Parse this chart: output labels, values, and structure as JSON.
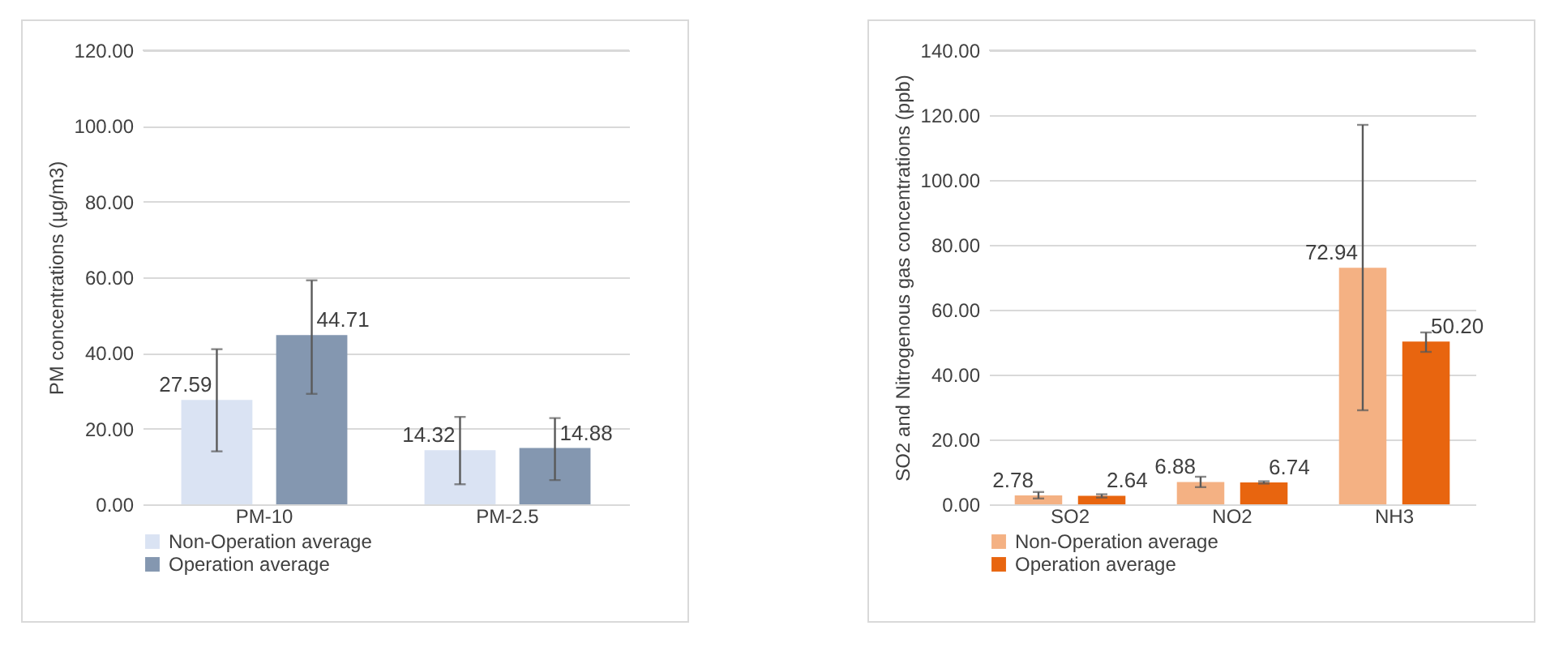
{
  "chart_data": [
    {
      "type": "bar",
      "ylabel": "PM concentrations (µg/m3)",
      "categories": [
        "PM-10",
        "PM-2.5"
      ],
      "series": [
        {
          "name": "Non-Operation average",
          "color": "#dae3f3",
          "values": [
            27.59,
            14.32
          ],
          "value_labels": [
            "27.59",
            "14.32"
          ],
          "errors": [
            [
              14,
              41
            ],
            [
              5.3,
              23.1
            ]
          ]
        },
        {
          "name": "Operation average",
          "color": "#8497b0",
          "values": [
            44.71,
            14.88
          ],
          "value_labels": [
            "44.71",
            "14.88"
          ],
          "errors": [
            [
              29.2,
              59.2
            ],
            [
              6.4,
              22.8
            ]
          ]
        }
      ],
      "ylim": [
        0,
        120
      ],
      "yticks": [
        {
          "value": 0,
          "label": "0.00"
        },
        {
          "value": 20,
          "label": "20.00"
        },
        {
          "value": 40,
          "label": "40.00"
        },
        {
          "value": 60,
          "label": "60.00"
        },
        {
          "value": 80,
          "label": "80.00"
        },
        {
          "value": 100,
          "label": "100.00"
        },
        {
          "value": 120,
          "label": "120.00"
        }
      ],
      "grid": "y",
      "legend": "bottom"
    },
    {
      "type": "bar",
      "ylabel": "SO2 and Nitrogenous gas concentrations (ppb)",
      "categories": [
        "SO2",
        "NO2",
        "NH3"
      ],
      "series": [
        {
          "name": "Non-Operation average",
          "color": "#f4b183",
          "values": [
            2.78,
            6.88,
            72.94
          ],
          "value_labels": [
            "2.78",
            "6.88",
            "72.94"
          ],
          "errors": [
            [
              1.8,
              3.8
            ],
            [
              5.3,
              8.5
            ],
            [
              29,
              117
            ]
          ]
        },
        {
          "name": "Operation average",
          "color": "#e8650f",
          "values": [
            2.64,
            6.74,
            50.2
          ],
          "value_labels": [
            "2.64",
            "6.74",
            "50.20"
          ],
          "errors": [
            [
              2.1,
              3.1
            ],
            [
              6.4,
              7.1
            ],
            [
              47,
              53
            ]
          ]
        }
      ],
      "ylim": [
        0,
        140
      ],
      "yticks": [
        {
          "value": 0,
          "label": "0.00"
        },
        {
          "value": 20,
          "label": "20.00"
        },
        {
          "value": 40,
          "label": "40.00"
        },
        {
          "value": 60,
          "label": "60.00"
        },
        {
          "value": 80,
          "label": "80.00"
        },
        {
          "value": 100,
          "label": "100.00"
        },
        {
          "value": 120,
          "label": "120.00"
        },
        {
          "value": 140,
          "label": "140.00"
        }
      ],
      "grid": "y",
      "legend": "bottom"
    }
  ]
}
